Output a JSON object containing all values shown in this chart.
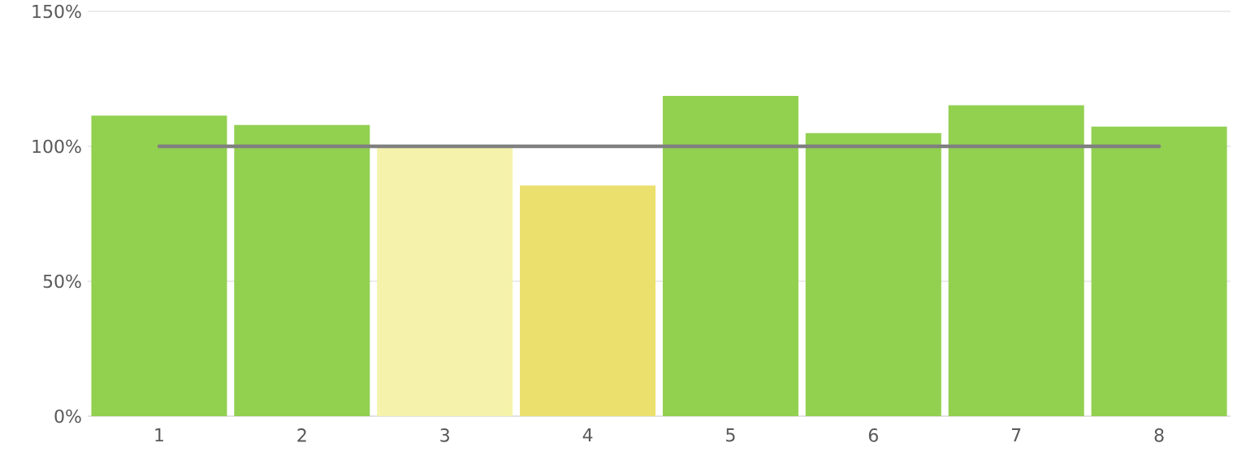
{
  "chart_data": {
    "type": "bar",
    "categories": [
      "1",
      "2",
      "3",
      "4",
      "5",
      "6",
      "7",
      "8"
    ],
    "series": [
      {
        "colors": [
          "#92d050",
          "#92d050",
          "#f5f3ab",
          "#ebe06e",
          "#92d050",
          "#92d050",
          "#92d050",
          "#92d050"
        ],
        "values": [
          111.4,
          107.9,
          99.4,
          85.5,
          118.7,
          104.9,
          115.2,
          107.3
        ]
      },
      {
        "type": "line",
        "color": "#808080",
        "values": [
          100,
          100,
          100,
          100,
          100,
          100,
          100,
          100
        ]
      }
    ],
    "ylim": [
      0,
      150
    ],
    "yticks": [
      {
        "value": 0,
        "label": "0%"
      },
      {
        "value": 50,
        "label": "50%"
      },
      {
        "value": 100,
        "label": "100%"
      },
      {
        "value": 150,
        "label": "150%"
      }
    ],
    "grid": "y"
  }
}
